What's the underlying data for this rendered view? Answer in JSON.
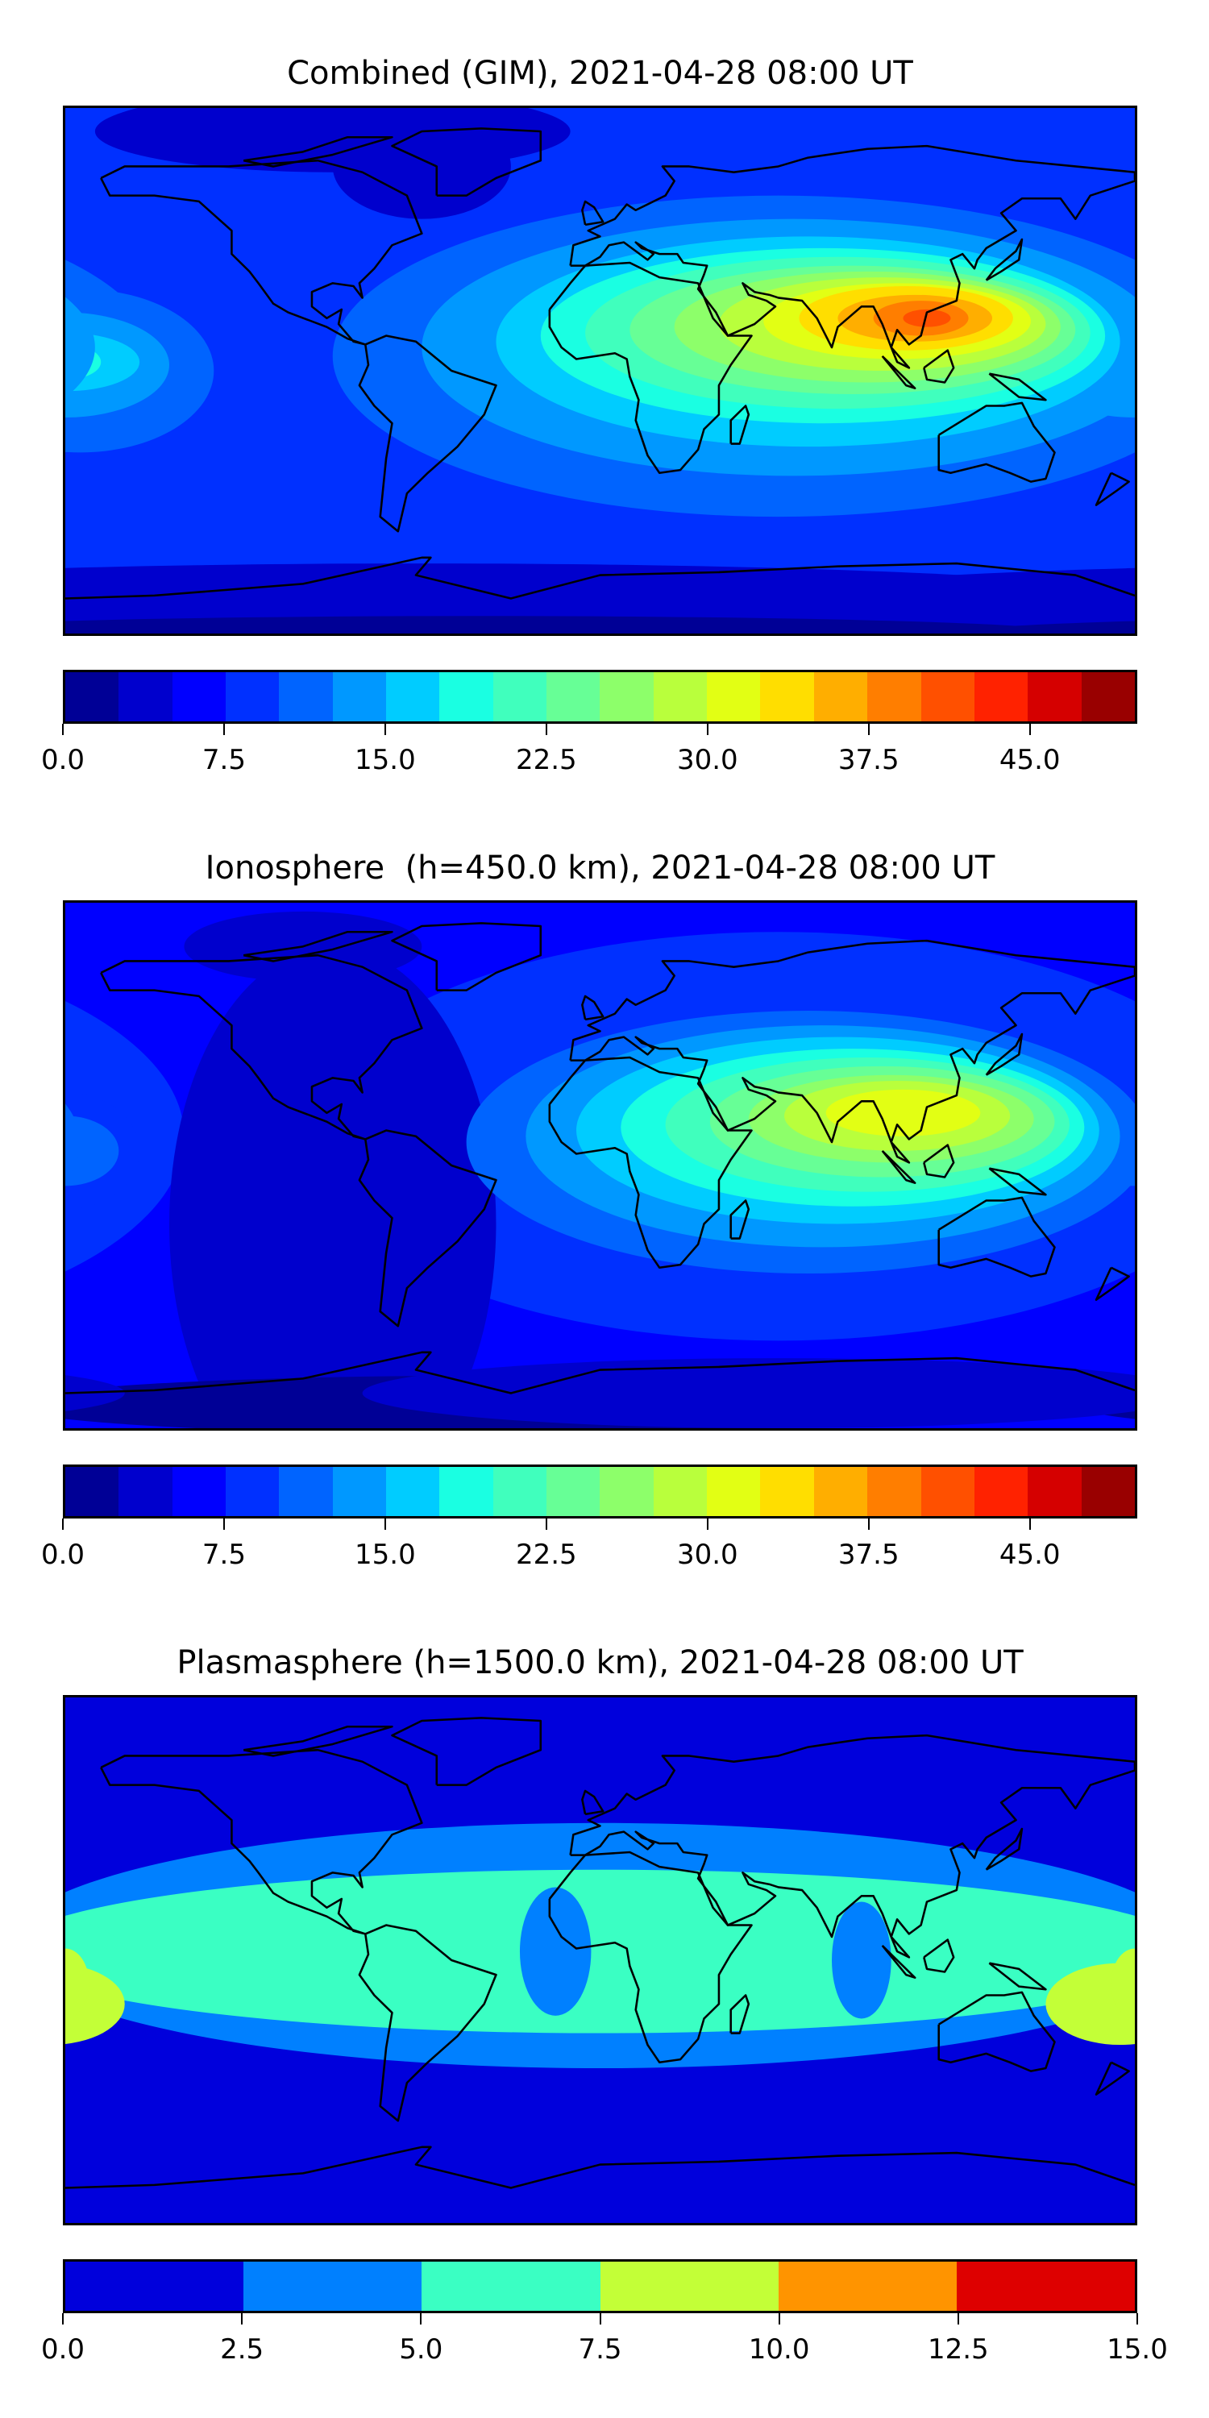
{
  "chart_data": [
    {
      "type": "heatmap",
      "title": "Combined (GIM), 2021-04-28 08:00 UT",
      "projection": "plate-carree",
      "xlim": [
        -180,
        180
      ],
      "ylim": [
        -90,
        90
      ],
      "colorbar": {
        "levels": [
          0,
          2.5,
          5,
          7.5,
          10,
          12.5,
          15,
          17.5,
          20,
          22.5,
          25,
          27.5,
          30,
          32.5,
          35,
          37.5,
          40,
          42.5,
          45,
          47.5,
          50
        ],
        "colors": [
          "#000096",
          "#0000CD",
          "#0000FF",
          "#0030FF",
          "#0064FF",
          "#0098FF",
          "#00CCFF",
          "#1AFFE2",
          "#40FFBD",
          "#67FF96",
          "#8DFF6A",
          "#B9FF3C",
          "#E2FF14",
          "#FFDE00",
          "#FFAE00",
          "#FF7E00",
          "#FF5000",
          "#FF2200",
          "#D50000",
          "#990000"
        ],
        "ticks": [
          0,
          7.5,
          15,
          22.5,
          30,
          37.5,
          45
        ],
        "tick_labels": [
          "0.0",
          "7.5",
          "15.0",
          "22.5",
          "30.0",
          "37.5",
          "45.0"
        ]
      },
      "peak": {
        "lon": 105,
        "lat": 18,
        "value": 41
      }
    },
    {
      "type": "heatmap",
      "title": "Ionosphere  (h=450.0 km), 2021-04-28 08:00 UT",
      "projection": "plate-carree",
      "xlim": [
        -180,
        180
      ],
      "ylim": [
        -90,
        90
      ],
      "colorbar": {
        "levels": [
          0,
          2.5,
          5,
          7.5,
          10,
          12.5,
          15,
          17.5,
          20,
          22.5,
          25,
          27.5,
          30,
          32.5,
          35,
          37.5,
          40,
          42.5,
          45,
          47.5,
          50
        ],
        "colors": [
          "#000096",
          "#0000CD",
          "#0000FF",
          "#0030FF",
          "#0064FF",
          "#0098FF",
          "#00CCFF",
          "#1AFFE2",
          "#40FFBD",
          "#67FF96",
          "#8DFF6A",
          "#B9FF3C",
          "#E2FF14",
          "#FFDE00",
          "#FFAE00",
          "#FF7E00",
          "#FF5000",
          "#FF2200",
          "#D50000",
          "#990000"
        ],
        "ticks": [
          0,
          7.5,
          15,
          22.5,
          30,
          37.5,
          45
        ],
        "tick_labels": [
          "0.0",
          "7.5",
          "15.0",
          "22.5",
          "30.0",
          "37.5",
          "45.0"
        ]
      },
      "peak": {
        "lon": 100,
        "lat": 18,
        "value": 31
      }
    },
    {
      "type": "heatmap",
      "title": "Plasmasphere (h=1500.0 km), 2021-04-28 08:00 UT",
      "projection": "plate-carree",
      "xlim": [
        -180,
        180
      ],
      "ylim": [
        -90,
        90
      ],
      "colorbar": {
        "levels": [
          0,
          2.5,
          5,
          7.5,
          10,
          12.5,
          15
        ],
        "colors": [
          "#0000DC",
          "#0080FF",
          "#3AFFC3",
          "#C3FF37",
          "#FF9400",
          "#DE0000"
        ],
        "ticks": [
          0,
          2.5,
          5,
          7.5,
          10,
          12.5,
          15
        ],
        "tick_labels": [
          "0.0",
          "2.5",
          "5.0",
          "7.5",
          "10.0",
          "12.5",
          "15.0"
        ]
      },
      "peak": {
        "lon": 165,
        "lat": -15,
        "value": 8
      }
    }
  ]
}
